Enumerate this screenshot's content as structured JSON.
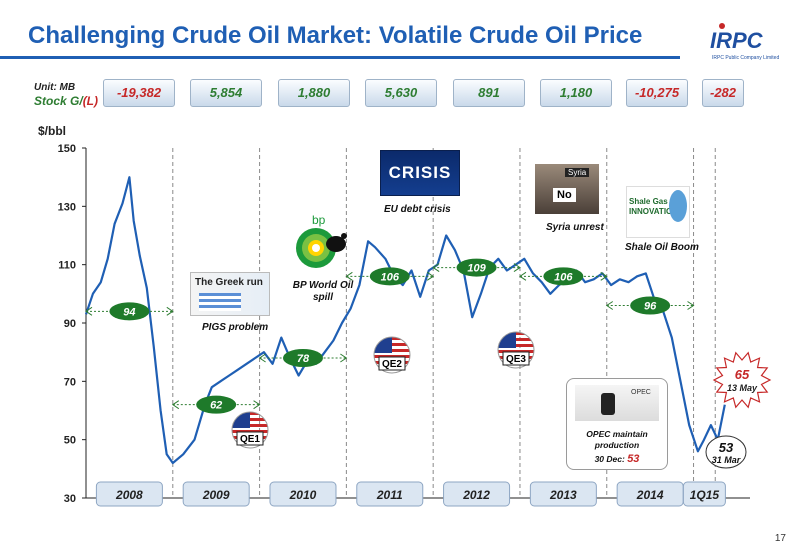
{
  "header": {
    "title": "Challenging Crude Oil Market: Volatile Crude Oil Price",
    "logo_text": "IRPC",
    "logo_subtitle": "IRPC Public Company Limited"
  },
  "stock_gl": {
    "unit_label": "Unit: MB",
    "label_prefix": "Stock G/",
    "label_suffix": "(L)",
    "values": [
      {
        "text": "-19,382",
        "color": "#c62828"
      },
      {
        "text": "5,854",
        "color": "#2e7d32"
      },
      {
        "text": "1,880",
        "color": "#2e7d32"
      },
      {
        "text": "5,630",
        "color": "#2e7d32"
      },
      {
        "text": "891",
        "color": "#2e7d32"
      },
      {
        "text": "1,180",
        "color": "#2e7d32"
      },
      {
        "text": "-10,275",
        "color": "#c62828"
      },
      {
        "text": "-282",
        "color": "#c62828"
      }
    ]
  },
  "annotations": {
    "eu_crisis_image_text": "CRISIS",
    "eu_crisis_caption": "EU debt crisis",
    "syria_image_text": "No",
    "syria_sign": "Syria",
    "syria_caption": "Syria unrest",
    "shale_image_text": "Shale Gas INNOVATION",
    "shale_caption": "Shale Oil Boom",
    "bp_image_text": "bp",
    "bp_caption": "BP World Oil spill",
    "greek_image_text": "The Greek run",
    "greek_caption": "PIGS problem",
    "qe_labels": [
      "QE1",
      "QE2",
      "QE3"
    ],
    "opec_image_text": "OPEC",
    "opec_caption_1": "OPEC maintain",
    "opec_caption_2": "production",
    "opec_date": "30 Dec:",
    "opec_value": "53",
    "callout_high_value": "65",
    "callout_high_date": "13 May",
    "callout_low_value": "53",
    "callout_low_date": "31 Mar"
  },
  "chart_data": {
    "type": "line",
    "ylabel": "$/bbl",
    "ylim": [
      30,
      150
    ],
    "yticks": [
      30,
      50,
      70,
      90,
      110,
      130,
      150
    ],
    "categories": [
      "2008",
      "2009",
      "2010",
      "2011",
      "2012",
      "2013",
      "2014",
      "1Q15"
    ],
    "period_averages": [
      94,
      62,
      78,
      106,
      109,
      106,
      96
    ],
    "grid": false,
    "series": [
      {
        "color": "#1f5fb4",
        "x": [
          2008.0,
          2008.08,
          2008.17,
          2008.25,
          2008.33,
          2008.42,
          2008.5,
          2008.55,
          2008.62,
          2008.7,
          2008.78,
          2008.86,
          2008.93,
          2009.0,
          2009.12,
          2009.25,
          2009.37,
          2009.45,
          2009.55,
          2009.65,
          2009.75,
          2009.85,
          2009.95,
          2010.05,
          2010.15,
          2010.25,
          2010.35,
          2010.45,
          2010.55,
          2010.65,
          2010.75,
          2010.85,
          2010.95,
          2011.05,
          2011.15,
          2011.25,
          2011.33,
          2011.45,
          2011.55,
          2011.65,
          2011.75,
          2011.85,
          2011.95,
          2012.05,
          2012.15,
          2012.25,
          2012.35,
          2012.45,
          2012.55,
          2012.65,
          2012.75,
          2012.85,
          2012.95,
          2013.05,
          2013.15,
          2013.25,
          2013.35,
          2013.45,
          2013.55,
          2013.65,
          2013.75,
          2013.85,
          2013.95,
          2014.05,
          2014.15,
          2014.25,
          2014.35,
          2014.45,
          2014.55,
          2014.65,
          2014.75,
          2014.85,
          2014.95,
          2015.05,
          2015.12,
          2015.2,
          2015.28,
          2015.36
        ],
        "y": [
          93,
          100,
          104,
          112,
          124,
          131,
          140,
          125,
          113,
          102,
          82,
          60,
          45,
          42,
          45,
          50,
          62,
          68,
          70,
          72,
          74,
          76,
          78,
          80,
          76,
          85,
          78,
          72,
          77,
          76,
          80,
          84,
          90,
          95,
          103,
          118,
          116,
          112,
          106,
          103,
          108,
          99,
          108,
          110,
          120,
          115,
          108,
          92,
          100,
          109,
          112,
          108,
          110,
          112,
          107,
          104,
          100,
          103,
          105,
          108,
          104,
          105,
          107,
          103,
          105,
          104,
          106,
          107,
          98,
          94,
          85,
          70,
          55,
          46,
          50,
          55,
          50,
          62
        ]
      }
    ]
  }
}
